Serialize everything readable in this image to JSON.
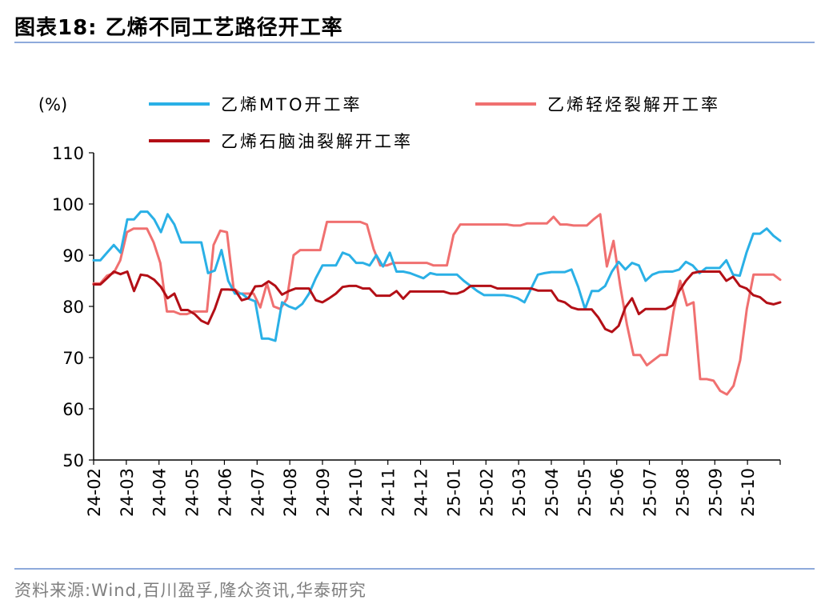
{
  "title": "图表18:  乙烯不同工艺路径开工率",
  "source": "资料来源:Wind,百川盈孚,隆众资讯,华泰研究",
  "colors": {
    "mto": "#2ab0e6",
    "light": "#f07070",
    "naphtha": "#b30f16",
    "rule": "#8eaadb"
  },
  "chart_data": {
    "type": "line",
    "ylabel": "(%)",
    "ylim": [
      50,
      110
    ],
    "yticks": [
      50,
      60,
      70,
      80,
      90,
      100,
      110
    ],
    "x_tick_labels": [
      "24-02",
      "24-03",
      "24-04",
      "24-05",
      "24-06",
      "24-07",
      "24-08",
      "24-09",
      "24-10",
      "24-11",
      "24-12",
      "25-01",
      "25-02",
      "25-03",
      "25-04",
      "25-05",
      "25-06",
      "25-07",
      "25-08",
      "25-09",
      "25-10"
    ],
    "grid": false,
    "legend": "top",
    "series": [
      {
        "name": "乙烯MTO开工率",
        "values": [
          89,
          89,
          90.5,
          92,
          90.5,
          97,
          97,
          98.5,
          98.5,
          97,
          94.5,
          98,
          96,
          92.5,
          92.5,
          92.5,
          92.5,
          86.5,
          87,
          91,
          85,
          82.5,
          82.5,
          81.5,
          81,
          73.7,
          73.7,
          73.3,
          80.8,
          80,
          79.5,
          80.5,
          82.5,
          85.5,
          88,
          88,
          88,
          90.5,
          90,
          88.5,
          88.5,
          88,
          90,
          87.8,
          90.5,
          86.8,
          86.8,
          86.5,
          86,
          85.5,
          86.5,
          86.2,
          86.2,
          86.2,
          86.2,
          85,
          84,
          83,
          82.2,
          82.2,
          82.2,
          82.2,
          82,
          81.6,
          80.8,
          83.5,
          86.2,
          86.5,
          86.7,
          86.7,
          86.7,
          87.2,
          83.8,
          79.5,
          83,
          83,
          84,
          86.8,
          88.7,
          87.2,
          88.5,
          88,
          85,
          86.2,
          86.7,
          86.8,
          86.8,
          87.2,
          88.7,
          88,
          86.5,
          87.5,
          87.5,
          87.5,
          89,
          86.2,
          86,
          90.5,
          94.2,
          94.2,
          95.2,
          93.8,
          92.8
        ]
      },
      {
        "name": "乙烯轻烃裂解开工率",
        "values": [
          84.5,
          84.5,
          86,
          86.5,
          89,
          94.5,
          95.2,
          95.2,
          95.2,
          92.5,
          88.5,
          79,
          79,
          78.5,
          78.5,
          79,
          79,
          79,
          92,
          94.8,
          94.5,
          83.5,
          82.5,
          82.5,
          82.5,
          79.8,
          84.5,
          80,
          79.5,
          81.5,
          90,
          91,
          91,
          91,
          91,
          96.5,
          96.5,
          96.5,
          96.5,
          96.5,
          96.5,
          96,
          91.2,
          88,
          88,
          88.5,
          88.5,
          88.5,
          88.5,
          88.5,
          88.5,
          88,
          88,
          88,
          94,
          96,
          96,
          96,
          96,
          96,
          96,
          96,
          96,
          95.8,
          95.8,
          96.2,
          96.2,
          96.2,
          96.2,
          97.5,
          96,
          96,
          95.8,
          95.8,
          95.8,
          97,
          98,
          87.8,
          92.8,
          84,
          76.5,
          70.5,
          70.5,
          68.5,
          69.5,
          70.5,
          70.5,
          79,
          85,
          80.2,
          80.8,
          65.8,
          65.8,
          65.5,
          63.5,
          62.8,
          64.5,
          69.5,
          79.5,
          86.2,
          86.2,
          86.2,
          86.2,
          85.2
        ]
      },
      {
        "name": "乙烯石脑油裂解开工率",
        "values": [
          84.3,
          84.3,
          85.5,
          86.8,
          86.3,
          86.8,
          83,
          86.2,
          86,
          85.2,
          83.8,
          81.6,
          82.5,
          79.3,
          79.3,
          78.5,
          77.2,
          76.6,
          79.5,
          83.3,
          83.3,
          83.2,
          81.2,
          81.6,
          83.9,
          84,
          84.9,
          84,
          82.3,
          83,
          83.5,
          83.5,
          83.5,
          81.2,
          80.8,
          81.6,
          82.5,
          83.8,
          84,
          84,
          83.5,
          83.5,
          82.1,
          82.1,
          82.1,
          83,
          81.5,
          82.9,
          82.9,
          82.9,
          82.9,
          82.9,
          82.9,
          82.5,
          82.5,
          83,
          84,
          84,
          84,
          84,
          83.5,
          83.5,
          83.5,
          83.5,
          83.5,
          83.5,
          83.1,
          83.1,
          83.1,
          81.2,
          80.8,
          79.8,
          79.4,
          79.4,
          79.4,
          77.8,
          75.6,
          75,
          76.2,
          79.8,
          81.6,
          78.5,
          79.5,
          79.5,
          79.5,
          79.5,
          80.2,
          83,
          85,
          86.5,
          86.8,
          86.8,
          86.8,
          86.8,
          85,
          85.8,
          84,
          83.5,
          82.2,
          81.8,
          80.7,
          80.4,
          80.8
        ]
      }
    ]
  }
}
